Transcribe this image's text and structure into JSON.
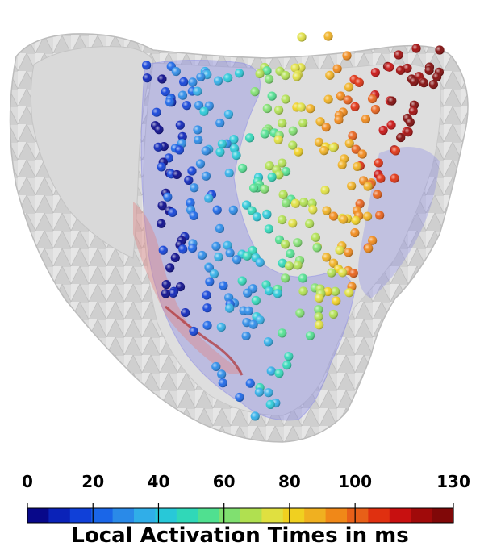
{
  "figure": {
    "kind": "3d-mesh-render",
    "mesh_color": "#d7d7d7",
    "overlay_color": "#7f7fe6"
  },
  "colorbar": {
    "title": "Local Activation Times in ms",
    "min": 0,
    "max": 130,
    "ticks": [
      {
        "value": 0,
        "label": "0"
      },
      {
        "value": 20,
        "label": "20"
      },
      {
        "value": 40,
        "label": "40"
      },
      {
        "value": 60,
        "label": "60"
      },
      {
        "value": 80,
        "label": "80"
      },
      {
        "value": 100,
        "label": "100"
      },
      {
        "value": 130,
        "label": "130"
      }
    ],
    "colors": [
      "#08088a",
      "#0a22b8",
      "#1040d8",
      "#1a66e8",
      "#2a8ae8",
      "#30aee8",
      "#28c8d8",
      "#30d8b8",
      "#50e090",
      "#80e070",
      "#b0e050",
      "#e0e040",
      "#f0d020",
      "#f0b020",
      "#f08818",
      "#e86018",
      "#e03010",
      "#c81010",
      "#a00a0a",
      "#800808"
    ]
  }
}
